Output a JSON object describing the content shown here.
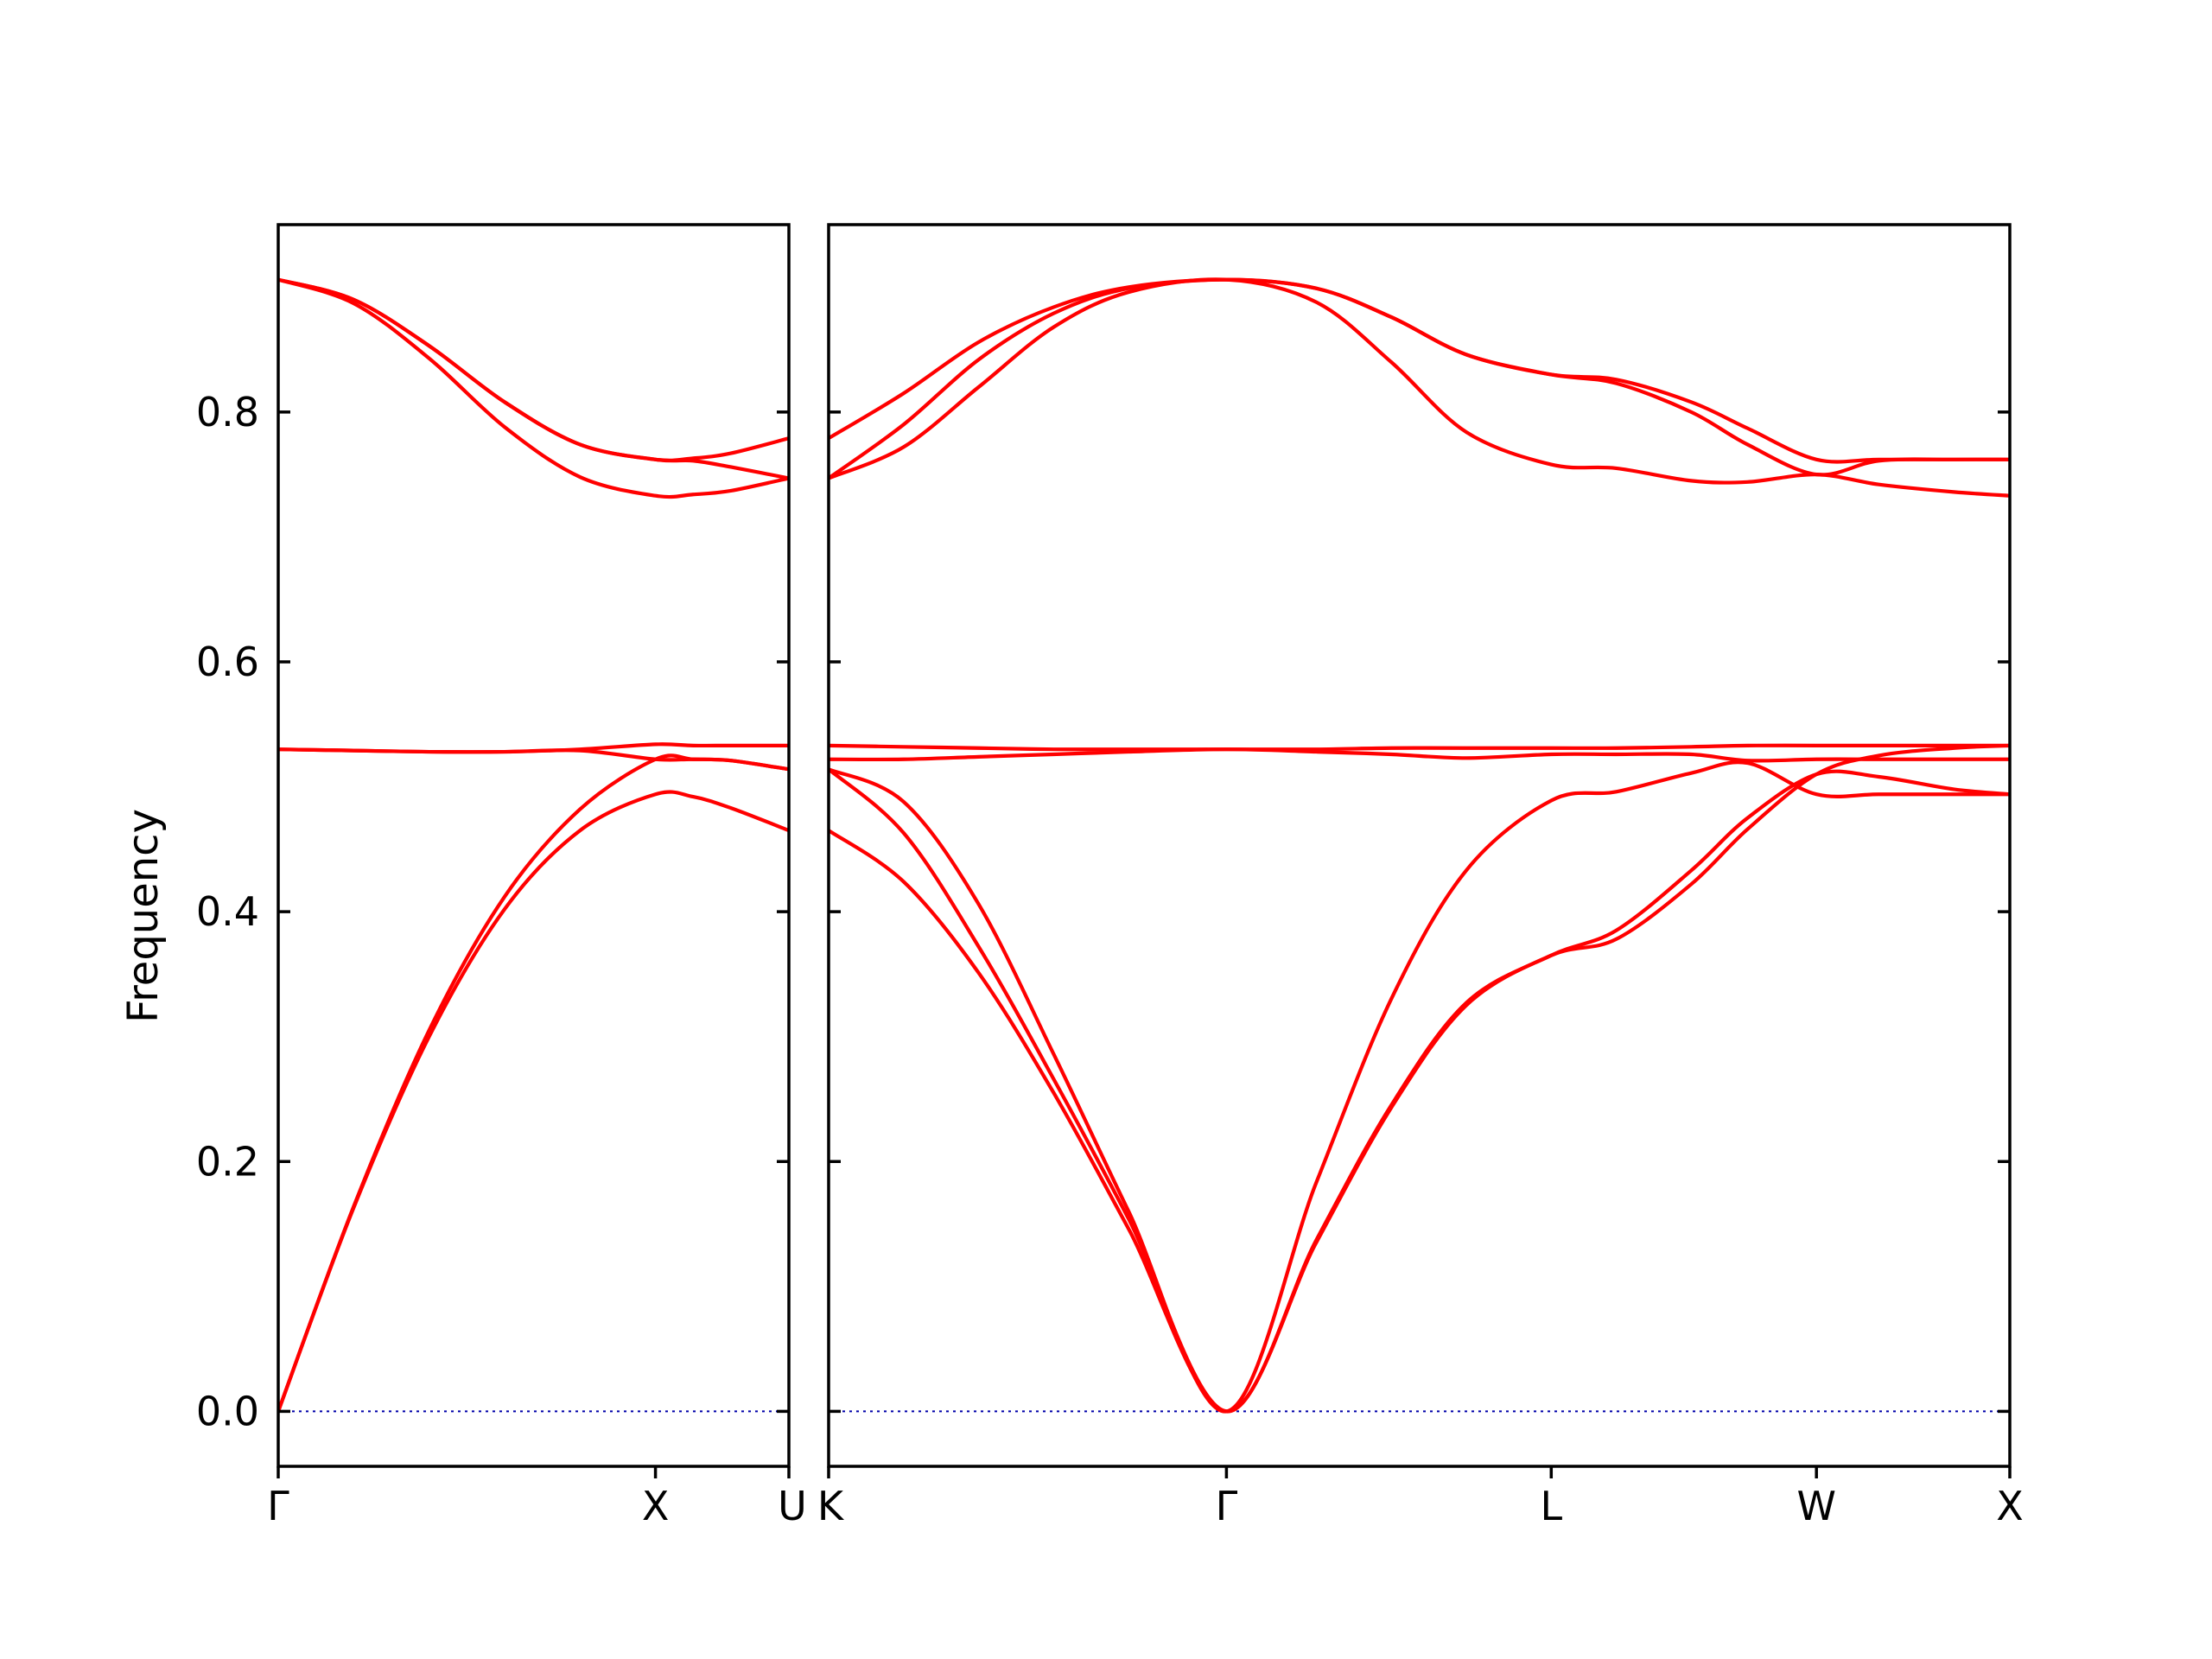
{
  "chart_data": {
    "type": "line",
    "ylabel": "Frequency",
    "ylim": [
      -0.044,
      0.95
    ],
    "yticks": [
      0.0,
      0.2,
      0.4,
      0.6,
      0.8
    ],
    "ytick_labels": [
      "0.0",
      "0.2",
      "0.4",
      "0.6",
      "0.8"
    ],
    "line_color": "#ff0000",
    "zero_line_color": "#0000aa",
    "panels": [
      {
        "name": "panel-gamma-x-u",
        "xlim": [
          0,
          1.3537
        ],
        "xticks": [
          0,
          1.0,
          1.3537
        ],
        "xtick_labels": [
          "Γ",
          "X",
          "U"
        ],
        "bands": [
          {
            "x": [
              0,
              0.2,
              0.4,
              0.6,
              0.8,
              1.0,
              1.1,
              1.2,
              1.3537
            ],
            "y": [
              0.0,
              0.163,
              0.3,
              0.402,
              0.465,
              0.494,
              0.492,
              0.483,
              0.465
            ]
          },
          {
            "x": [
              0,
              0.2,
              0.4,
              0.6,
              0.8,
              1.0,
              1.1,
              1.2,
              1.3537
            ],
            "y": [
              0.0,
              0.164,
              0.305,
              0.412,
              0.482,
              0.522,
              0.522,
              0.521,
              0.514
            ]
          },
          {
            "x": [
              0,
              0.2,
              0.4,
              0.6,
              0.8,
              1.0,
              1.1,
              1.2,
              1.3537
            ],
            "y": [
              0.53,
              0.529,
              0.528,
              0.528,
              0.529,
              0.522,
              0.522,
              0.521,
              0.514
            ]
          },
          {
            "x": [
              0,
              0.2,
              0.4,
              0.6,
              0.8,
              1.0,
              1.1,
              1.2,
              1.3537
            ],
            "y": [
              0.53,
              0.529,
              0.528,
              0.528,
              0.53,
              0.534,
              0.533,
              0.533,
              0.533
            ]
          },
          {
            "x": [
              0,
              0.2,
              0.4,
              0.6,
              0.8,
              1.0,
              1.1,
              1.2,
              1.3537
            ],
            "y": [
              0.906,
              0.887,
              0.843,
              0.788,
              0.748,
              0.733,
              0.734,
              0.737,
              0.747
            ]
          },
          {
            "x": [
              0,
              0.2,
              0.4,
              0.6,
              0.8,
              1.0,
              1.1,
              1.2,
              1.3537
            ],
            "y": [
              0.906,
              0.89,
              0.853,
              0.808,
              0.774,
              0.762,
              0.761,
              0.756,
              0.747
            ]
          },
          {
            "x": [
              0,
              0.2,
              0.4,
              0.6,
              0.8,
              1.0,
              1.1,
              1.2,
              1.3537
            ],
            "y": [
              0.906,
              0.89,
              0.853,
              0.808,
              0.774,
              0.762,
              0.763,
              0.767,
              0.779
            ]
          }
        ]
      },
      {
        "name": "panel-k-gamma-l-w-x",
        "xlim": [
          0,
          3.1494
        ],
        "xticks": [
          0,
          1.0607,
          1.9267,
          2.6338,
          3.1494
        ],
        "xtick_labels": [
          "K",
          "Γ",
          "L",
          "W",
          "X"
        ],
        "bands": [
          {
            "x": [
              0,
              0.2,
              0.4,
              0.6,
              0.8,
              1.0607,
              1.3,
              1.5,
              1.7,
              1.9267,
              2.1,
              2.3,
              2.45,
              2.6338,
              2.8,
              3.0,
              3.1494
            ],
            "y": [
              0.465,
              0.424,
              0.351,
              0.255,
              0.146,
              0.0,
              0.135,
              0.243,
              0.325,
              0.365,
              0.378,
              0.422,
              0.466,
              0.51,
              0.525,
              0.531,
              0.533
            ]
          },
          {
            "x": [
              0,
              0.2,
              0.4,
              0.6,
              0.8,
              1.0607,
              1.3,
              1.5,
              1.7,
              1.9267,
              2.1,
              2.3,
              2.45,
              2.6338,
              2.8,
              3.0,
              3.1494
            ],
            "y": [
              0.514,
              0.463,
              0.372,
              0.266,
              0.154,
              0.0,
              0.137,
              0.245,
              0.327,
              0.365,
              0.385,
              0.433,
              0.475,
              0.51,
              0.508,
              0.498,
              0.494
            ]
          },
          {
            "x": [
              0,
              0.2,
              0.4,
              0.6,
              0.8,
              1.0607,
              1.3,
              1.5,
              1.7,
              1.9267,
              2.1,
              2.3,
              2.45,
              2.6338,
              2.8,
              3.0,
              3.1494
            ],
            "y": [
              0.514,
              0.488,
              0.406,
              0.286,
              0.16,
              0.0,
              0.183,
              0.33,
              0.433,
              0.489,
              0.496,
              0.511,
              0.519,
              0.494,
              0.494,
              0.494,
              0.494
            ]
          },
          {
            "x": [
              0,
              0.2,
              0.4,
              0.6,
              0.8,
              1.0607,
              1.3,
              1.5,
              1.7,
              1.9267,
              2.1,
              2.3,
              2.45,
              2.6338,
              2.8,
              3.0,
              3.1494
            ],
            "y": [
              0.522,
              0.522,
              0.524,
              0.526,
              0.528,
              0.53,
              0.528,
              0.526,
              0.523,
              0.526,
              0.526,
              0.526,
              0.521,
              0.522,
              0.522,
              0.522,
              0.522
            ]
          },
          {
            "x": [
              0,
              0.2,
              0.4,
              0.6,
              0.8,
              1.0607,
              1.3,
              1.5,
              1.7,
              1.9267,
              2.1,
              2.3,
              2.45,
              2.6338,
              2.8,
              3.0,
              3.1494
            ],
            "y": [
              0.533,
              0.532,
              0.531,
              0.53,
              0.53,
              0.53,
              0.53,
              0.531,
              0.531,
              0.531,
              0.531,
              0.532,
              0.533,
              0.533,
              0.533,
              0.533,
              0.533
            ]
          },
          {
            "x": [
              0,
              0.2,
              0.4,
              0.6,
              0.8,
              1.0607,
              1.3,
              1.5,
              1.7,
              1.9267,
              2.1,
              2.3,
              2.45,
              2.6338,
              2.8,
              3.0,
              3.1494
            ],
            "y": [
              0.747,
              0.772,
              0.82,
              0.868,
              0.896,
              0.906,
              0.888,
              0.84,
              0.784,
              0.758,
              0.755,
              0.745,
              0.744,
              0.75,
              0.742,
              0.736,
              0.733
            ]
          },
          {
            "x": [
              0,
              0.2,
              0.4,
              0.6,
              0.8,
              1.0607,
              1.3,
              1.5,
              1.7,
              1.9267,
              2.1,
              2.3,
              2.45,
              2.6338,
              2.8,
              3.0,
              3.1494
            ],
            "y": [
              0.747,
              0.79,
              0.842,
              0.879,
              0.899,
              0.906,
              0.899,
              0.876,
              0.846,
              0.83,
              0.823,
              0.8,
              0.774,
              0.75,
              0.761,
              0.762,
              0.762
            ]
          },
          {
            "x": [
              0,
              0.2,
              0.4,
              0.6,
              0.8,
              1.0607,
              1.3,
              1.5,
              1.7,
              1.9267,
              2.1,
              2.3,
              2.45,
              2.6338,
              2.8,
              3.0,
              3.1494
            ],
            "y": [
              0.779,
              0.815,
              0.856,
              0.884,
              0.9,
              0.906,
              0.899,
              0.876,
              0.846,
              0.83,
              0.826,
              0.808,
              0.787,
              0.762,
              0.762,
              0.762,
              0.762
            ]
          }
        ]
      }
    ]
  }
}
